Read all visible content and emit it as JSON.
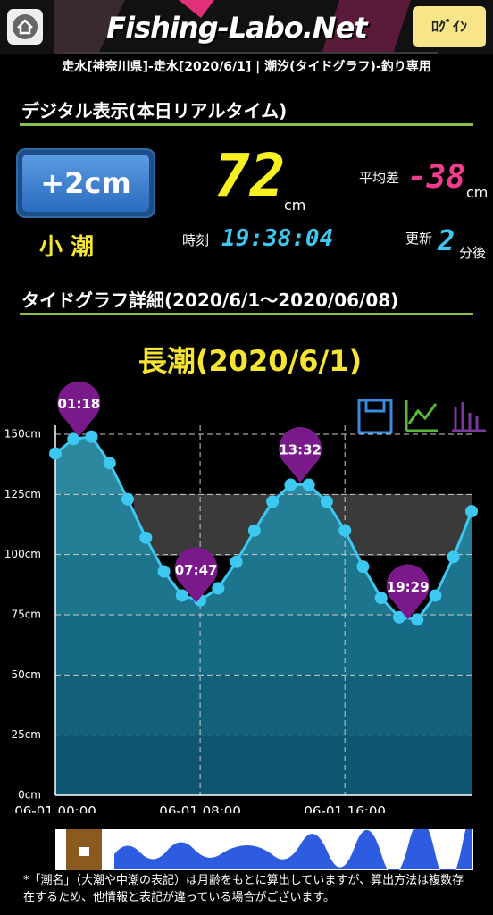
{
  "header": {
    "title": "Fishing-Labo.Net",
    "login": "ﾛｸﾞｲﾝ",
    "subtitle": "走水[神奈川県]-走水[2020/6/1] | 潮汐(タイドグラフ)-釣り専用"
  },
  "realtime": {
    "heading": "デジタル表示(本日リアルタイム)",
    "diff_button": "+2cm",
    "tide_name": "小 潮",
    "level": 72,
    "level_unit": "cm",
    "avg_diff_label": "平均差",
    "avg_diff": -38,
    "avg_diff_unit": "cm",
    "time_label": "時刻",
    "time": "19:38:04",
    "update_label": "更新",
    "update_in": 2,
    "update_unit": "分後"
  },
  "graph_heading": "タイドグラフ詳細(2020/6/1～2020/06/08)",
  "chart_data": {
    "type": "area",
    "title": "長潮(2020/6/1)",
    "color": "#3cc8f0",
    "x": [
      0,
      1,
      2,
      3,
      4,
      5,
      6,
      7,
      8,
      9,
      10,
      11,
      12,
      13,
      14,
      15,
      16,
      17,
      18,
      19,
      20,
      21,
      22,
      23
    ],
    "values": [
      142,
      148,
      149,
      138,
      123,
      107,
      93,
      83,
      81,
      86,
      97,
      110,
      122,
      129,
      129,
      122,
      110,
      95,
      82,
      74,
      73,
      83,
      99,
      118
    ],
    "xlim": [
      0,
      23
    ],
    "xticks": [
      {
        "value": 0,
        "label": "06-01 00:00"
      },
      {
        "value": 8,
        "label": "06-01 08:00"
      },
      {
        "value": 16,
        "label": "06-01 16:00"
      }
    ],
    "ylim": [
      0,
      150
    ],
    "yticks": [
      {
        "value": 0,
        "label": "0cm"
      },
      {
        "value": 25,
        "label": "25cm"
      },
      {
        "value": 50,
        "label": "50cm"
      },
      {
        "value": 75,
        "label": "75cm"
      },
      {
        "value": 100,
        "label": "100cm"
      },
      {
        "value": 125,
        "label": "125cm"
      },
      {
        "value": 150,
        "label": "150cm"
      }
    ],
    "grid": true,
    "annotations": [
      {
        "label": "01:18",
        "x": 1.3,
        "y": 149
      },
      {
        "label": "07:47",
        "x": 7.78,
        "y": 80
      },
      {
        "label": "13:32",
        "x": 13.53,
        "y": 130
      },
      {
        "label": "19:29",
        "x": 19.48,
        "y": 73
      }
    ]
  },
  "footnote": "*「潮名」（大潮や中潮の表記）は月齢をもとに算出していますが、算出方法は複数存在するため、他情報と表記が違っている場合がございます。"
}
